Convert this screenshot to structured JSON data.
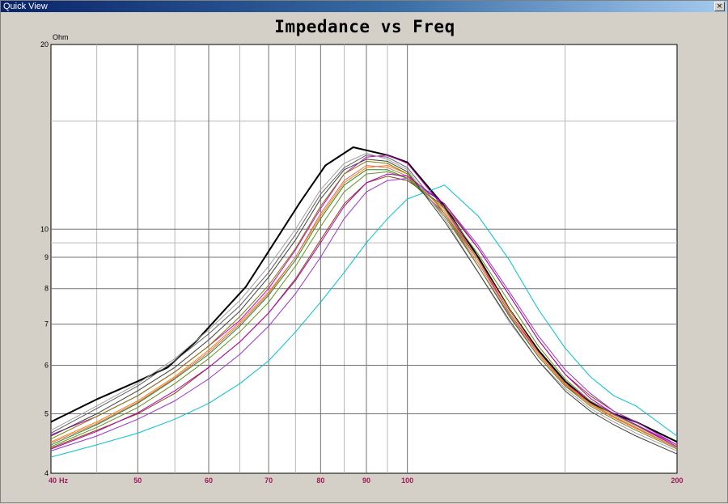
{
  "window": {
    "title": "Quick View",
    "close_label": "×"
  },
  "chart_data": {
    "type": "line",
    "title": "Impedance vs Freq",
    "ylabel": "Ohm",
    "xlabel": "Hz",
    "x_scale": "log",
    "y_scale": "log",
    "xlim": [
      40,
      200
    ],
    "ylim": [
      4,
      20
    ],
    "x_ticks": [
      40,
      50,
      60,
      70,
      80,
      90,
      100,
      200
    ],
    "x_tick_labels": [
      "40",
      "50",
      "60",
      "70",
      "80",
      "90",
      "100",
      "200"
    ],
    "x_minor_grid": [
      45,
      55,
      65,
      75,
      85,
      95,
      150
    ],
    "y_ticks": [
      4,
      5,
      6,
      7,
      8,
      9,
      10,
      20
    ],
    "y_tick_labels": [
      "4",
      "5",
      "6",
      "7",
      "8",
      "9",
      "10",
      "20"
    ],
    "y_minor_grid": [
      9.5,
      15
    ],
    "grid": true,
    "tick_label_color": "#a0185a",
    "series": [
      {
        "color": "#000000",
        "width": 2,
        "x": [
          40,
          45,
          50,
          54,
          58,
          63,
          66,
          70,
          76,
          81,
          87,
          95,
          100,
          110,
          120,
          130,
          140,
          150,
          160,
          170,
          180,
          200
        ],
        "y": [
          4.85,
          5.28,
          5.65,
          5.95,
          6.55,
          7.48,
          8.05,
          9.2,
          11.1,
          12.7,
          13.6,
          13.2,
          12.85,
          10.9,
          9.0,
          7.4,
          6.35,
          5.65,
          5.22,
          5.0,
          4.85,
          4.5
        ]
      },
      {
        "color": "#606060",
        "width": 1,
        "x": [
          40,
          45,
          50,
          55,
          60,
          65,
          70,
          75,
          80,
          85,
          90,
          95,
          100,
          110,
          120,
          130,
          140,
          150,
          160,
          170,
          180,
          200
        ],
        "y": [
          4.65,
          5.1,
          5.55,
          6.1,
          6.75,
          7.5,
          8.5,
          9.8,
          11.4,
          12.6,
          13.2,
          13.1,
          12.6,
          10.6,
          8.7,
          7.2,
          6.2,
          5.55,
          5.2,
          4.95,
          4.75,
          4.4
        ]
      },
      {
        "color": "#cc00cc",
        "width": 1,
        "x": [
          40,
          45,
          50,
          55,
          60,
          65,
          70,
          75,
          80,
          85,
          90,
          95,
          100,
          110,
          120,
          130,
          140,
          150,
          160,
          170,
          180,
          200
        ],
        "y": [
          4.62,
          4.95,
          5.35,
          5.85,
          6.45,
          7.1,
          8.0,
          9.25,
          10.8,
          12.3,
          13.1,
          13.2,
          12.8,
          10.8,
          8.9,
          7.3,
          6.3,
          5.6,
          5.25,
          5.0,
          4.8,
          4.45
        ]
      },
      {
        "color": "#8b4513",
        "width": 1,
        "x": [
          40,
          45,
          50,
          55,
          60,
          65,
          70,
          75,
          80,
          85,
          90,
          95,
          100,
          110,
          120,
          130,
          140,
          150,
          160,
          170,
          180,
          200
        ],
        "y": [
          4.4,
          4.7,
          5.0,
          5.4,
          5.95,
          6.55,
          7.3,
          8.3,
          9.6,
          11.0,
          11.9,
          12.2,
          12.0,
          10.9,
          9.3,
          7.8,
          6.6,
          5.8,
          5.35,
          5.05,
          4.85,
          4.45
        ]
      },
      {
        "color": "#228b22",
        "width": 1,
        "x": [
          40,
          45,
          50,
          55,
          60,
          65,
          70,
          75,
          80,
          85,
          90,
          95,
          100,
          110,
          120,
          130,
          140,
          150,
          160,
          170,
          180,
          200
        ],
        "y": [
          4.45,
          4.8,
          5.2,
          5.7,
          6.25,
          6.95,
          7.8,
          8.9,
          10.4,
          11.8,
          12.5,
          12.5,
          12.1,
          10.6,
          8.9,
          7.4,
          6.3,
          5.6,
          5.2,
          4.95,
          4.75,
          4.4
        ]
      },
      {
        "color": "#00c0d0",
        "width": 1,
        "x": [
          40,
          45,
          50,
          55,
          60,
          65,
          70,
          75,
          80,
          85,
          90,
          95,
          100,
          110,
          120,
          130,
          140,
          150,
          160,
          170,
          180,
          200
        ],
        "y": [
          4.25,
          4.45,
          4.65,
          4.9,
          5.2,
          5.6,
          6.1,
          6.8,
          7.6,
          8.5,
          9.5,
          10.4,
          11.2,
          11.8,
          10.5,
          8.9,
          7.4,
          6.4,
          5.75,
          5.35,
          5.15,
          4.6
        ]
      },
      {
        "color": "#ff8000",
        "width": 1,
        "x": [
          40,
          45,
          50,
          55,
          60,
          65,
          70,
          75,
          80,
          85,
          90,
          95,
          100,
          110,
          120,
          130,
          140,
          150,
          160,
          170,
          180,
          200
        ],
        "y": [
          4.5,
          4.85,
          5.25,
          5.75,
          6.35,
          7.05,
          7.9,
          9.0,
          10.5,
          11.9,
          12.6,
          12.7,
          12.3,
          10.7,
          8.9,
          7.4,
          6.3,
          5.6,
          5.2,
          4.95,
          4.75,
          4.4
        ]
      },
      {
        "color": "#9932cc",
        "width": 1,
        "x": [
          40,
          45,
          50,
          55,
          60,
          65,
          70,
          75,
          80,
          85,
          90,
          95,
          100,
          110,
          120,
          130,
          140,
          150,
          160,
          170,
          180,
          200
        ],
        "y": [
          4.35,
          4.6,
          4.9,
          5.25,
          5.7,
          6.25,
          6.95,
          7.85,
          9.0,
          10.4,
          11.5,
          12.0,
          12.1,
          11.0,
          9.4,
          7.9,
          6.7,
          5.9,
          5.4,
          5.05,
          4.85,
          4.45
        ]
      },
      {
        "color": "#808000",
        "width": 1,
        "x": [
          40,
          45,
          50,
          55,
          60,
          65,
          70,
          75,
          80,
          85,
          90,
          95,
          100,
          110,
          120,
          130,
          140,
          150,
          160,
          170,
          180,
          200
        ],
        "y": [
          4.55,
          4.95,
          5.35,
          5.85,
          6.45,
          7.2,
          8.1,
          9.3,
          10.9,
          12.3,
          12.9,
          12.8,
          12.3,
          10.5,
          8.7,
          7.25,
          6.2,
          5.55,
          5.15,
          4.9,
          4.7,
          4.38
        ]
      },
      {
        "color": "#e06666",
        "width": 1,
        "x": [
          40,
          45,
          50,
          55,
          60,
          65,
          70,
          75,
          80,
          85,
          90,
          95,
          100,
          110,
          120,
          130,
          140,
          150,
          160,
          170,
          180,
          200
        ],
        "y": [
          4.48,
          4.82,
          5.22,
          5.72,
          6.3,
          7.0,
          7.85,
          9.0,
          10.6,
          12.0,
          12.7,
          12.6,
          12.2,
          10.6,
          8.8,
          7.3,
          6.25,
          5.58,
          5.18,
          4.93,
          4.73,
          4.4
        ]
      },
      {
        "color": "#a0a0a0",
        "width": 1,
        "x": [
          40,
          45,
          50,
          55,
          60,
          65,
          70,
          75,
          80,
          85,
          90,
          95,
          100,
          110,
          120,
          130,
          140,
          150,
          160,
          170,
          180,
          200
        ],
        "y": [
          4.7,
          5.15,
          5.6,
          6.15,
          6.85,
          7.65,
          8.7,
          10.0,
          11.6,
          12.8,
          13.3,
          13.0,
          12.5,
          10.4,
          8.5,
          7.05,
          6.1,
          5.5,
          5.1,
          4.85,
          4.65,
          4.35
        ]
      },
      {
        "color": "#6a8e23",
        "width": 1,
        "x": [
          40,
          45,
          50,
          55,
          60,
          65,
          70,
          75,
          80,
          85,
          90,
          95,
          100,
          110,
          120,
          130,
          140,
          150,
          160,
          170,
          180,
          200
        ],
        "y": [
          4.42,
          4.75,
          5.12,
          5.6,
          6.15,
          6.8,
          7.6,
          8.7,
          10.1,
          11.5,
          12.3,
          12.4,
          12.1,
          10.8,
          9.1,
          7.6,
          6.45,
          5.7,
          5.25,
          4.98,
          4.78,
          4.42
        ]
      },
      {
        "color": "#b000b0",
        "width": 1,
        "x": [
          40,
          45,
          50,
          55,
          60,
          65,
          70,
          75,
          80,
          85,
          90,
          95,
          100,
          110,
          120,
          130,
          140,
          150,
          160,
          170,
          180,
          200
        ],
        "y": [
          4.38,
          4.68,
          5.02,
          5.45,
          5.95,
          6.55,
          7.3,
          8.25,
          9.5,
          10.9,
          11.9,
          12.3,
          12.2,
          11.0,
          9.3,
          7.8,
          6.6,
          5.8,
          5.3,
          5.0,
          4.8,
          4.42
        ]
      },
      {
        "color": "#404040",
        "width": 1,
        "x": [
          40,
          45,
          50,
          55,
          60,
          65,
          70,
          75,
          80,
          85,
          90,
          95,
          100,
          110,
          120,
          130,
          140,
          150,
          160,
          170,
          180,
          200
        ],
        "y": [
          4.6,
          5.0,
          5.45,
          5.95,
          6.6,
          7.35,
          8.35,
          9.6,
          11.2,
          12.5,
          13.0,
          12.9,
          12.4,
          10.3,
          8.5,
          7.1,
          6.1,
          5.45,
          5.05,
          4.8,
          4.6,
          4.3
        ]
      }
    ]
  }
}
